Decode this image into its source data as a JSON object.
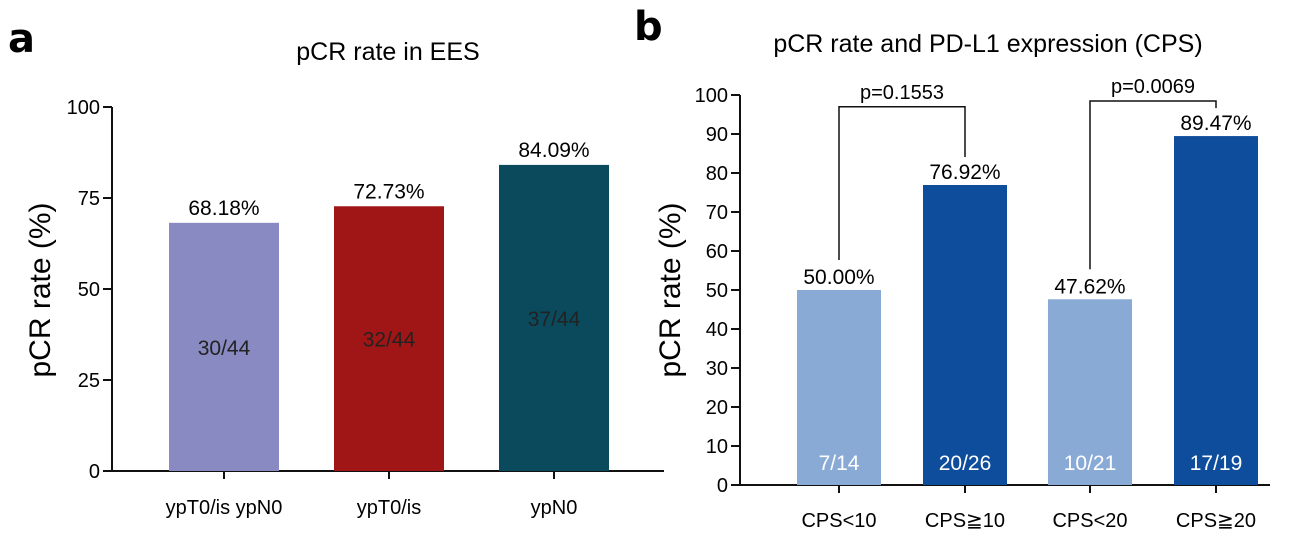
{
  "chart_data": [
    {
      "panel": "a",
      "type": "bar",
      "title": "pCR rate in EES",
      "xlabel": "",
      "ylabel": "pCR rate (%)",
      "ylim": [
        0,
        100
      ],
      "yticks": [
        0,
        25,
        50,
        75,
        100
      ],
      "categories": [
        "ypT0/is ypN0",
        "ypT0/is",
        "ypN0"
      ],
      "values": [
        68.18,
        72.73,
        84.09
      ],
      "value_labels": [
        "68.18%",
        "72.73%",
        "84.09%"
      ],
      "fractions": [
        "30/44",
        "32/44",
        "37/44"
      ],
      "colors": [
        "#8a8ac2",
        "#a01515",
        "#0a4a5c"
      ],
      "fraction_text_color": "#222222"
    },
    {
      "panel": "b",
      "type": "bar",
      "title": "pCR rate and PD-L1 expression (CPS)",
      "xlabel": "",
      "ylabel": "pCR rate (%)",
      "ylim": [
        0,
        100
      ],
      "yticks": [
        0,
        10,
        20,
        30,
        40,
        50,
        60,
        70,
        80,
        90,
        100
      ],
      "categories": [
        "CPS<10",
        "CPS≧10",
        "CPS<20",
        "CPS≧20"
      ],
      "values": [
        50.0,
        76.92,
        47.62,
        89.47
      ],
      "value_labels": [
        "50.00%",
        "76.92%",
        "47.62%",
        "89.47%"
      ],
      "fractions": [
        "7/14",
        "20/26",
        "10/21",
        "17/19"
      ],
      "colors": [
        "#8aaad6",
        "#0e4d9c",
        "#8aaad6",
        "#0e4d9c"
      ],
      "fraction_text_color": "#ffffff",
      "comparisons": [
        {
          "pair": [
            0,
            1
          ],
          "p": "p=0.1553",
          "level": 98
        },
        {
          "pair": [
            2,
            3
          ],
          "p": "p=0.0069",
          "level": 99.5
        }
      ]
    }
  ]
}
